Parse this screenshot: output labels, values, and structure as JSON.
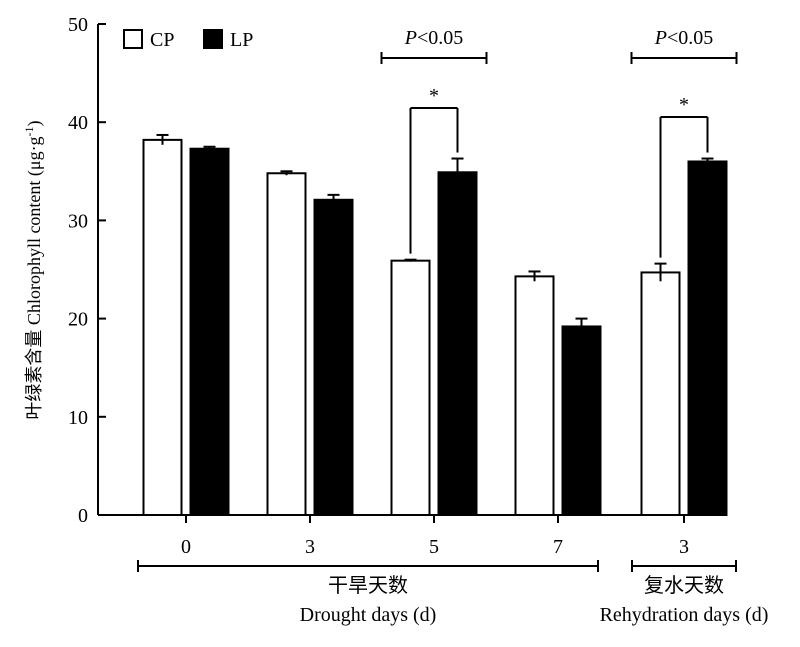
{
  "chart_data": {
    "type": "bar",
    "categories": [
      "0",
      "3",
      "5",
      "7",
      "3"
    ],
    "series": [
      {
        "name": "CP",
        "color": "#ffffff",
        "values": [
          38.2,
          34.8,
          25.9,
          24.3,
          24.7
        ],
        "errors": [
          0.5,
          0.2,
          0.1,
          0.5,
          0.9
        ]
      },
      {
        "name": "LP",
        "color": "#000000",
        "values": [
          37.3,
          32.1,
          34.9,
          19.2,
          36.0
        ],
        "errors": [
          0.2,
          0.5,
          1.4,
          0.8,
          0.3
        ]
      }
    ],
    "ylabel": "叶绿素含量 Chlorophyll content (μg·g-1)",
    "ylim": [
      0,
      50
    ],
    "yticks": [
      "0",
      "10",
      "20",
      "30",
      "40",
      "50"
    ],
    "legend_position": "top-left",
    "groups": [
      {
        "label_cn": "干旱天数",
        "label_en": "Drought days (d)",
        "categories": [
          0,
          1,
          2,
          3
        ]
      },
      {
        "label_cn": "复水天数",
        "label_en": "Rehydration days (d)",
        "categories": [
          4
        ]
      }
    ],
    "annotations": [
      {
        "category_index": 2,
        "p_text": "P<0.05",
        "star": "*"
      },
      {
        "category_index": 4,
        "p_text": "P<0.05",
        "star": "*"
      }
    ]
  }
}
